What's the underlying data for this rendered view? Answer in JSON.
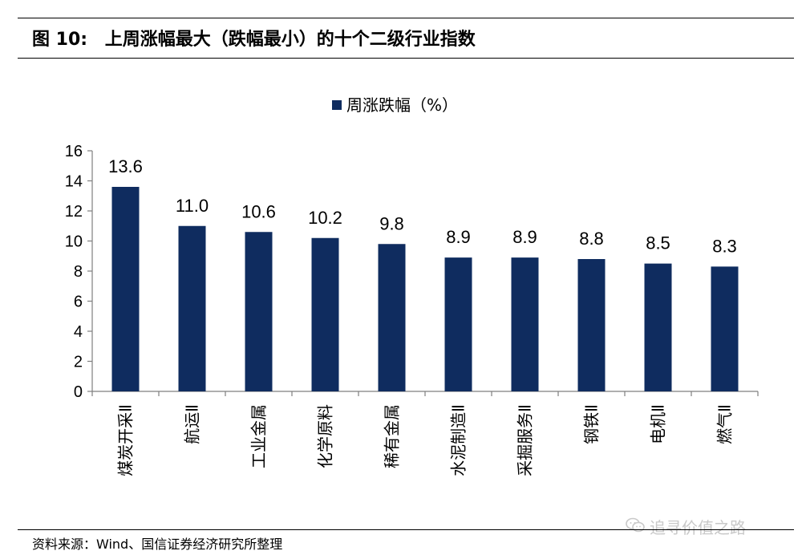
{
  "header": {
    "fig_label": "图 10:",
    "title": "上周涨幅最大（跌幅最小）的十个二级行业指数"
  },
  "footer": {
    "source": "资料来源：Wind、国信证券经济研究所整理",
    "watermark": "追寻价值之路"
  },
  "colors": {
    "bar": "#0f2c5f",
    "axis": "#7f7f7f"
  },
  "chart_data": {
    "type": "bar",
    "legend": "周涨跌幅（%）",
    "legend_position": "top-center",
    "categories": [
      "煤炭开采Ⅱ",
      "航运Ⅱ",
      "工业金属",
      "化学原料",
      "稀有金属",
      "水泥制造Ⅱ",
      "采掘服务Ⅱ",
      "钢铁Ⅱ",
      "电机Ⅱ",
      "燃气Ⅱ"
    ],
    "series": [
      {
        "name": "周涨跌幅（%）",
        "values": [
          13.6,
          11.0,
          10.6,
          10.2,
          9.8,
          8.9,
          8.9,
          8.8,
          8.5,
          8.3
        ]
      }
    ],
    "value_labels": [
      "13.6",
      "11.0",
      "10.6",
      "10.2",
      "9.8",
      "8.9",
      "8.9",
      "8.8",
      "8.5",
      "8.3"
    ],
    "yticks": [
      0,
      2,
      4,
      6,
      8,
      10,
      12,
      14,
      16
    ],
    "ylim": [
      0,
      16
    ],
    "grid": false
  }
}
